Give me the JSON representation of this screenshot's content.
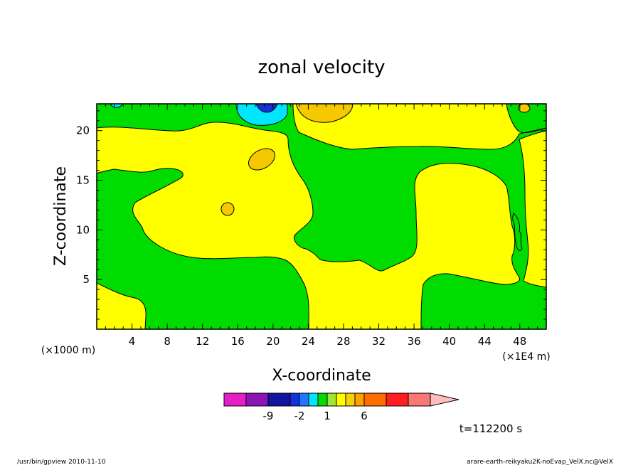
{
  "chart_data": {
    "type": "heatmap",
    "title": "zonal velocity",
    "xlabel": "X-coordinate",
    "ylabel": "Z-coordinate",
    "x_unit_left": "(×1000 m)",
    "x_unit_right": "(×1E4 m)",
    "x_ticks": [
      "4",
      "8",
      "12",
      "16",
      "20",
      "24",
      "28",
      "32",
      "36",
      "40",
      "44",
      "48"
    ],
    "y_ticks": [
      "5",
      "10",
      "15",
      "20"
    ],
    "xlim": [
      0,
      51
    ],
    "ylim": [
      0,
      22.7
    ],
    "time_label": "t=112200 s",
    "footer_left": "/usr/bin/gpview   2010-11-10",
    "footer_right": "arare-earth-reikyaku2K-noEvap_VelX.nc@VelX",
    "colorbar": {
      "colors": [
        "#e61ec8",
        "#8c14b4",
        "#1414a0",
        "#1432dc",
        "#1e78ff",
        "#00e6ff",
        "#00dc00",
        "#a0e632",
        "#ffff00",
        "#f5d200",
        "#ffa000",
        "#ff6e00",
        "#ff1e1e",
        "#f87878",
        "#ffbebe"
      ],
      "tick_labels": [
        "-9",
        "-2",
        "1",
        "6"
      ]
    },
    "regions": [
      {
        "name": "region-green",
        "color": "#00dc00"
      },
      {
        "name": "region-yellow",
        "color": "#ffff00"
      },
      {
        "name": "region-gold",
        "color": "#f5c800"
      },
      {
        "name": "region-cyan",
        "color": "#00e6ff"
      },
      {
        "name": "region-blue",
        "color": "#1432dc"
      }
    ]
  }
}
